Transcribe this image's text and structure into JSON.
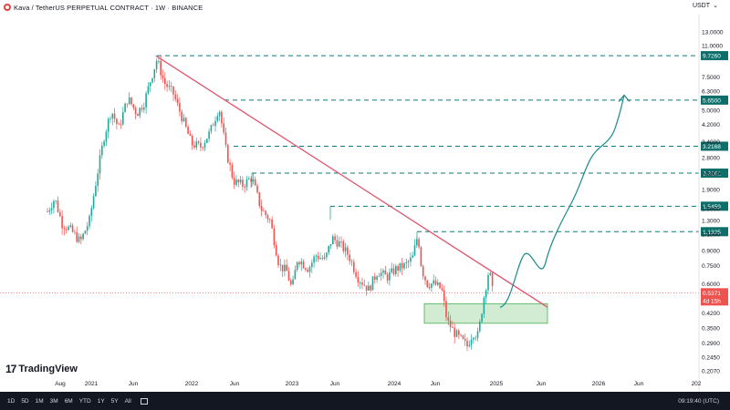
{
  "header": {
    "title": "Kava / TetherUS PERPETUAL CONTRACT · 1W · BINANCE",
    "unit": "USDT",
    "unit_chevron": "⌄"
  },
  "chart_data": {
    "type": "candlestick",
    "title": "Kava / TetherUS PERPETUAL CONTRACT · 1W · BINANCE",
    "y_scale": "log",
    "y_ticks": [
      "13.0000",
      "11.0000",
      "7.5000",
      "6.3000",
      "5.0000",
      "4.2000",
      "3.4000",
      "2.8000",
      "2.3000",
      "1.9000",
      "1.5000",
      "1.3000",
      "1.1000",
      "0.9000",
      "0.7500",
      "0.6000",
      "0.4200",
      "0.3500",
      "0.2900",
      "0.2450",
      "0.2070"
    ],
    "x_ticks": [
      "Aug",
      "2021",
      "Jun",
      "2022",
      "Jun",
      "2023",
      "Jun",
      "2024",
      "Jun",
      "2025",
      "Jun",
      "2026",
      "Jun",
      "202"
    ],
    "current_price": {
      "value": "0.5371",
      "countdown": "4d 15h"
    },
    "levels": [
      "9.7260",
      "5.6500",
      "3.2168",
      "2.3161",
      "1.5459",
      "1.1325"
    ],
    "trendline": {
      "from_price": 9.7,
      "to_price": 0.45
    },
    "support_zone": {
      "top": 0.47,
      "bottom": 0.37
    },
    "projection_end_price": 6.0,
    "candle_color_up": "#26a69a",
    "candle_color_down": "#ef5350"
  },
  "branding": {
    "logo_text": "TradingView",
    "logo_mark": "17"
  },
  "footer": {
    "timeframes": [
      "1D",
      "5D",
      "1M",
      "3M",
      "6M",
      "YTD",
      "1Y",
      "5Y",
      "All"
    ],
    "calendar_icon": "calendar-icon",
    "clock": "09:19:40 (UTC)"
  }
}
